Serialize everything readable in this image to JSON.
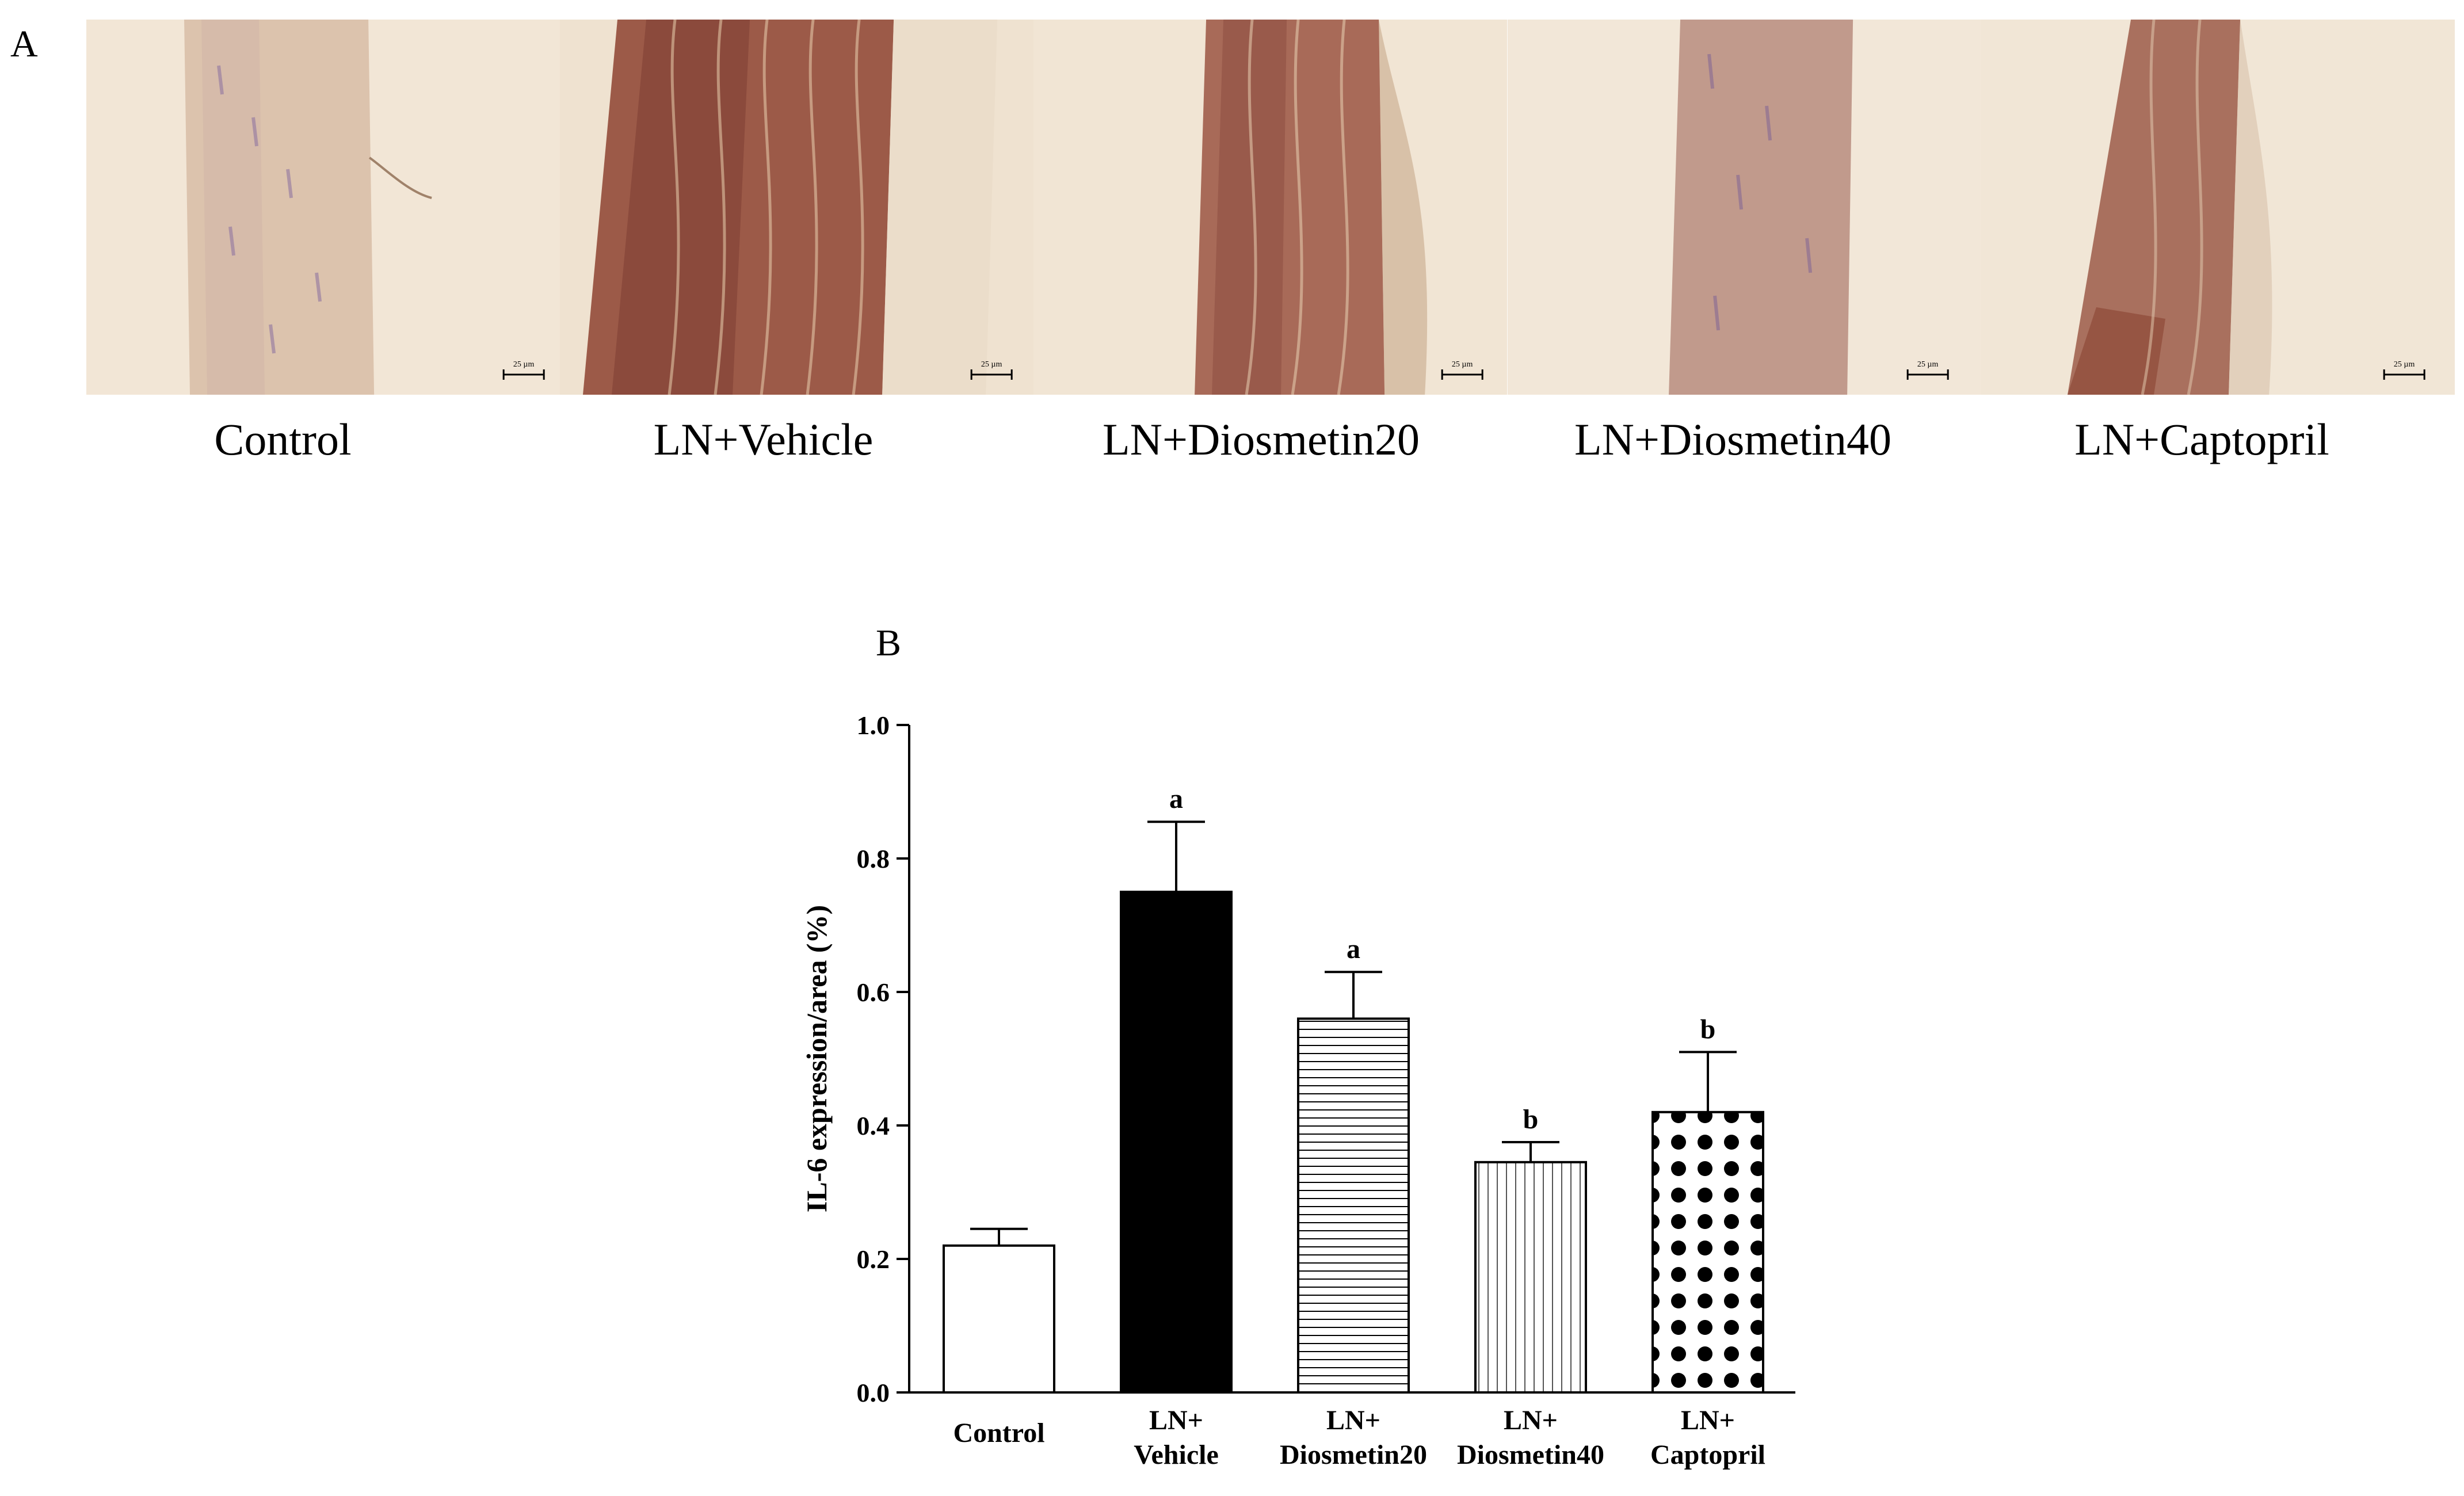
{
  "figure": {
    "panel_a_letter": "A",
    "panel_b_letter": "B",
    "scale_bar_text": "25 µm",
    "micrographs": [
      {
        "label": "Control",
        "stain": "light"
      },
      {
        "label": "LN+Vehicle",
        "stain": "heavy"
      },
      {
        "label": "LN+Diosmetin20",
        "stain": "medium"
      },
      {
        "label": "LN+Diosmetin40",
        "stain": "light-medium"
      },
      {
        "label": "LN+Captopril",
        "stain": "light-medium"
      }
    ]
  },
  "chart_data": {
    "type": "bar",
    "ylabel": "IL-6 expression/area (%)",
    "xlabel": "",
    "ylim": [
      0,
      1.0
    ],
    "yticks": [
      "0.0",
      "0.2",
      "0.4",
      "0.6",
      "0.8",
      "1.0"
    ],
    "categories": [
      [
        "Control"
      ],
      [
        "LN+",
        "Vehicle"
      ],
      [
        "LN+",
        "Diosmetin20"
      ],
      [
        "LN+",
        "Diosmetin40"
      ],
      [
        "LN+",
        "Captopril"
      ]
    ],
    "values": [
      0.22,
      0.75,
      0.56,
      0.345,
      0.42
    ],
    "errors": [
      0.025,
      0.105,
      0.07,
      0.03,
      0.09
    ],
    "significance": [
      "",
      "a",
      "a",
      "b",
      "b"
    ],
    "fills": [
      "white",
      "black",
      "horizontal-lines",
      "vertical-lines",
      "dot-grid"
    ],
    "grid": false
  }
}
